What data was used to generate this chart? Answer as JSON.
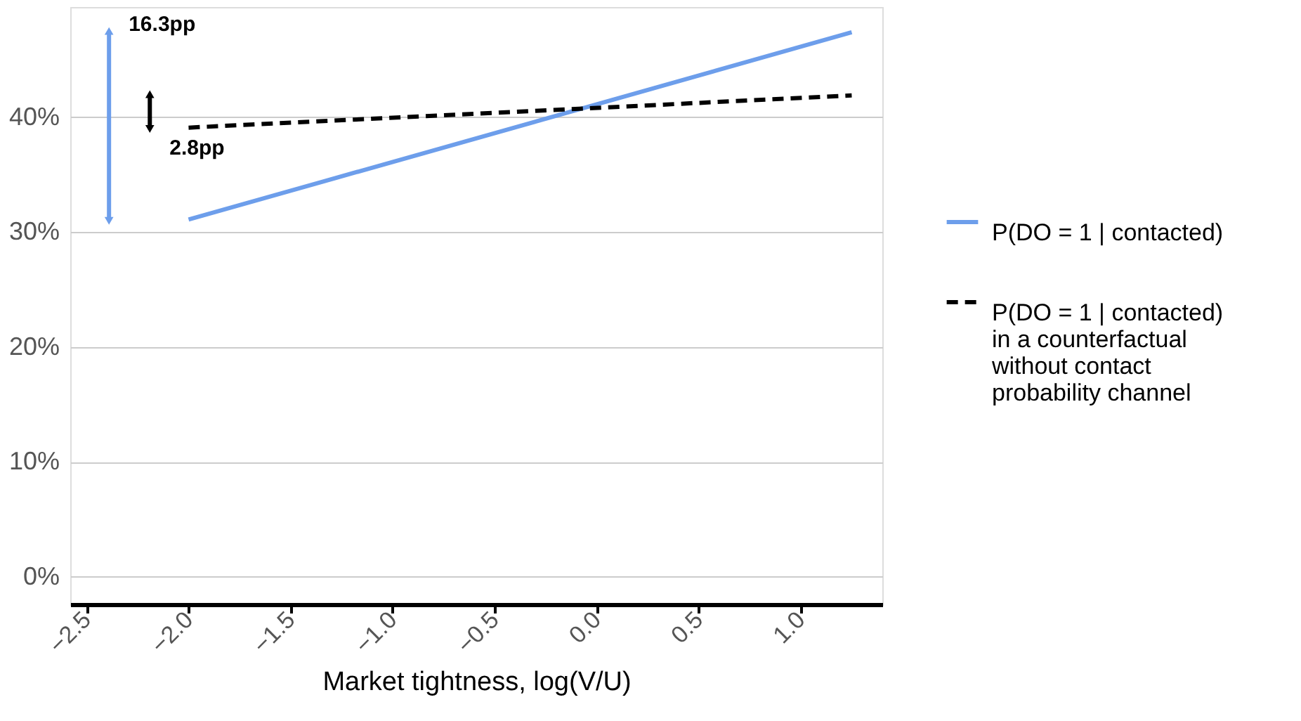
{
  "chart_data": {
    "type": "line",
    "xlabel": "Market tightness, log(V/U)",
    "x": [
      -2.0,
      1.25
    ],
    "series": [
      {
        "name": "P(DO = 1 | contacted)",
        "color": "#6d9eeb",
        "values": [
          0.311,
          0.474
        ],
        "line_style": "solid"
      },
      {
        "name": "P(DO = 1 | contacted) in a counterfactual without contact probability channel",
        "color": "#000000",
        "values": [
          0.391,
          0.419
        ],
        "line_style": "dashed"
      }
    ],
    "xlim": [
      -2.58,
      1.4
    ],
    "xticks": [
      {
        "value": -2.5,
        "label": "−2.5"
      },
      {
        "value": -2.0,
        "label": "−2.0"
      },
      {
        "value": -1.5,
        "label": "−1.5"
      },
      {
        "value": -1.0,
        "label": "−1.0"
      },
      {
        "value": -0.5,
        "label": "−0.5"
      },
      {
        "value": 0.0,
        "label": "0.0"
      },
      {
        "value": 0.5,
        "label": "0.5"
      },
      {
        "value": 1.0,
        "label": "1.0"
      }
    ],
    "ylim": [
      -0.024,
      0.496
    ],
    "yticks": [
      {
        "value": 0,
        "label": "0%"
      },
      {
        "value": 0.1,
        "label": "10%"
      },
      {
        "value": 0.2,
        "label": "20%"
      },
      {
        "value": 0.3,
        "label": "30%"
      },
      {
        "value": 0.4,
        "label": "40%"
      }
    ],
    "annotations": [
      {
        "text": "16.3pp",
        "x": -2.39,
        "y": 0.474
      },
      {
        "text": "2.8pp",
        "x": -2.19,
        "y": 0.391
      }
    ],
    "grid": "y",
    "legend": "right"
  }
}
